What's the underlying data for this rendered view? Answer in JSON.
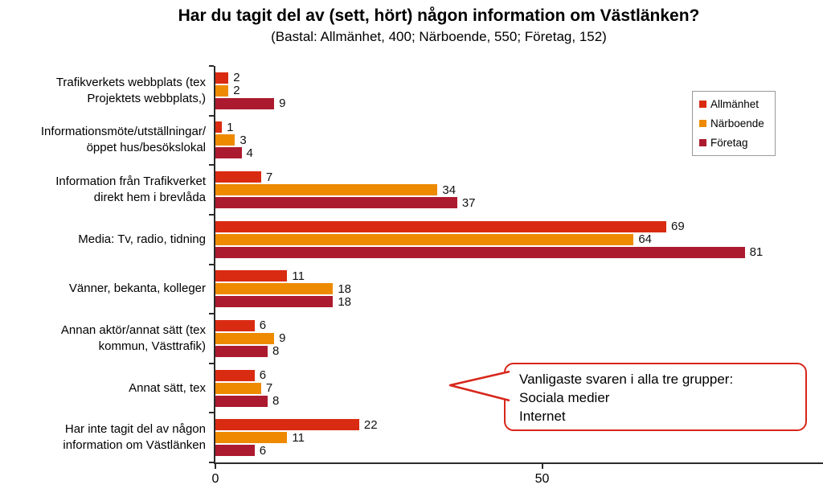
{
  "title": "Har du tagit del av (sett, hört) någon information om Västlänken?",
  "subtitle": "(Bastal: Allmänhet, 400; Närboende, 550; Företag, 152)",
  "chart_data": {
    "type": "bar",
    "orientation": "horizontal",
    "title": "Har du tagit del av (sett, hört) någon information om Västlänken?",
    "subtitle": "(Bastal: Allmänhet, 400; Närboende, 550; Företag, 152)",
    "categories": [
      "Trafikverkets webbplats (tex Projektets webbplats,)",
      "Informationsmöte/utställningar/ öppet hus/besökslokal",
      "Information från Trafikverket direkt hem i brevlåda",
      "Media: Tv, radio, tidning",
      "Vänner, bekanta, kolleger",
      "Annan aktör/annat sätt (tex kommun, Västtrafik)",
      "Annat sätt, tex",
      "Har inte tagit del av någon information om Västlänken"
    ],
    "category_lines": [
      [
        "Trafikverkets webbplats (tex",
        "Projektets webbplats,)"
      ],
      [
        "Informationsmöte/utställningar/",
        "öppet hus/besökslokal"
      ],
      [
        "Information från Trafikverket",
        "direkt hem i brevlåda"
      ],
      [
        "Media: Tv, radio, tidning"
      ],
      [
        "Vänner, bekanta, kolleger"
      ],
      [
        "Annan aktör/annat sätt (tex",
        "kommun, Västtrafik)"
      ],
      [
        "Annat sätt, tex"
      ],
      [
        "Har inte tagit del av någon",
        "information om Västlänken"
      ]
    ],
    "series": [
      {
        "name": "Allmänhet",
        "color": "#D92B11",
        "values": [
          2,
          1,
          7,
          69,
          11,
          6,
          6,
          22
        ]
      },
      {
        "name": "Närboende",
        "color": "#EE8A00",
        "values": [
          2,
          3,
          34,
          64,
          18,
          9,
          7,
          11
        ]
      },
      {
        "name": "Företag",
        "color": "#AC1A2F",
        "values": [
          9,
          4,
          37,
          81,
          18,
          8,
          8,
          6
        ]
      }
    ],
    "xlim": [
      0,
      92
    ],
    "x_ticks": [
      0,
      50
    ],
    "grid": false,
    "value_labels": true,
    "legend_position": "upper-right"
  },
  "legend": {
    "items": [
      {
        "label": "Allmänhet",
        "color": "#D92B11"
      },
      {
        "label": "Närboende",
        "color": "#EE8A00"
      },
      {
        "label": "Företag",
        "color": "#AC1A2F"
      }
    ]
  },
  "callout": {
    "lines": [
      "Vanligaste svaren i alla tre grupper:",
      "Sociala medier",
      "Internet"
    ],
    "border_color": "#D8261B"
  },
  "axis": {
    "color": "#2B2B2B"
  }
}
